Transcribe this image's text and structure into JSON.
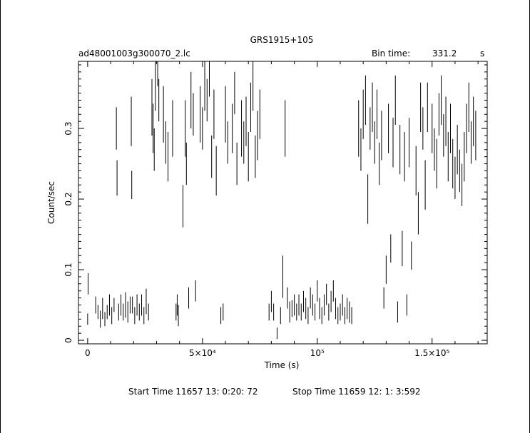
{
  "header": {
    "title": "GRS1915+105",
    "file_label": "ad48001003g300070_2.lc",
    "bin_time_label": "Bin time:",
    "bin_time_value": "331.2",
    "bin_time_unit": "s"
  },
  "footer": {
    "start_time": "Start Time 11657 13: 0:20: 72",
    "stop_time": "Stop Time 11659 12: 1: 3:592"
  },
  "chart_data": {
    "type": "scatter",
    "title": "GRS1915+105",
    "xlabel": "Time (s)",
    "ylabel": "Count/sec",
    "xlim": [
      -4000,
      174000
    ],
    "ylim": [
      -0.005,
      0.395
    ],
    "x_ticks": [
      {
        "value": 0,
        "label": "0"
      },
      {
        "value": 50000,
        "label": "5×10⁴"
      },
      {
        "value": 100000,
        "label": "10⁵"
      },
      {
        "value": 150000,
        "label": "1.5×10⁵"
      }
    ],
    "y_ticks": [
      {
        "value": 0,
        "label": "0"
      },
      {
        "value": 0.1,
        "label": "0.1"
      },
      {
        "value": 0.2,
        "label": "0.2"
      },
      {
        "value": 0.3,
        "label": "0.3"
      }
    ],
    "grid": false,
    "points": [
      [
        0,
        0.03,
        0.008
      ],
      [
        200,
        0.08,
        0.015
      ],
      [
        3500,
        0.05,
        0.012
      ],
      [
        4500,
        0.04,
        0.01
      ],
      [
        5500,
        0.03,
        0.012
      ],
      [
        6500,
        0.045,
        0.015
      ],
      [
        7500,
        0.03,
        0.01
      ],
      [
        8500,
        0.04,
        0.01
      ],
      [
        9500,
        0.05,
        0.015
      ],
      [
        10500,
        0.035,
        0.012
      ],
      [
        11500,
        0.05,
        0.01
      ],
      [
        12500,
        0.3,
        0.03
      ],
      [
        12800,
        0.23,
        0.025
      ],
      [
        13500,
        0.04,
        0.012
      ],
      [
        14500,
        0.05,
        0.015
      ],
      [
        15500,
        0.04,
        0.012
      ],
      [
        16500,
        0.05,
        0.018
      ],
      [
        17500,
        0.04,
        0.015
      ],
      [
        18500,
        0.05,
        0.012
      ],
      [
        19000,
        0.31,
        0.035
      ],
      [
        19200,
        0.22,
        0.02
      ],
      [
        19500,
        0.05,
        0.012
      ],
      [
        20500,
        0.035,
        0.012
      ],
      [
        21500,
        0.05,
        0.015
      ],
      [
        22500,
        0.04,
        0.012
      ],
      [
        23500,
        0.05,
        0.015
      ],
      [
        24500,
        0.035,
        0.012
      ],
      [
        25500,
        0.055,
        0.018
      ],
      [
        26500,
        0.04,
        0.012
      ],
      [
        28000,
        0.33,
        0.04
      ],
      [
        28500,
        0.3,
        0.035
      ],
      [
        29000,
        0.27,
        0.03
      ],
      [
        29500,
        0.36,
        0.035
      ],
      [
        30500,
        0.4,
        0.04
      ],
      [
        31000,
        0.34,
        0.03
      ],
      [
        33000,
        0.32,
        0.04
      ],
      [
        34000,
        0.28,
        0.03
      ],
      [
        35000,
        0.26,
        0.035
      ],
      [
        37000,
        0.3,
        0.04
      ],
      [
        38500,
        0.04,
        0.012
      ],
      [
        39000,
        0.05,
        0.015
      ],
      [
        39500,
        0.035,
        0.015
      ],
      [
        41500,
        0.19,
        0.03
      ],
      [
        42500,
        0.3,
        0.04
      ],
      [
        43000,
        0.25,
        0.03
      ],
      [
        44000,
        0.06,
        0.015
      ],
      [
        45000,
        0.34,
        0.04
      ],
      [
        46000,
        0.32,
        0.03
      ],
      [
        47000,
        0.07,
        0.015
      ],
      [
        49000,
        0.32,
        0.04
      ],
      [
        50000,
        0.3,
        0.03
      ],
      [
        51000,
        0.36,
        0.035
      ],
      [
        52000,
        0.34,
        0.03
      ],
      [
        53000,
        0.38,
        0.035
      ],
      [
        54000,
        0.26,
        0.03
      ],
      [
        55000,
        0.32,
        0.035
      ],
      [
        56000,
        0.24,
        0.035
      ],
      [
        58000,
        0.035,
        0.012
      ],
      [
        59000,
        0.04,
        0.012
      ],
      [
        60000,
        0.32,
        0.04
      ],
      [
        61000,
        0.28,
        0.03
      ],
      [
        63000,
        0.3,
        0.035
      ],
      [
        64000,
        0.35,
        0.03
      ],
      [
        65000,
        0.25,
        0.03
      ],
      [
        67000,
        0.3,
        0.04
      ],
      [
        68000,
        0.28,
        0.03
      ],
      [
        69000,
        0.31,
        0.035
      ],
      [
        70000,
        0.26,
        0.035
      ],
      [
        71000,
        0.33,
        0.035
      ],
      [
        72000,
        0.36,
        0.035
      ],
      [
        73000,
        0.26,
        0.03
      ],
      [
        74000,
        0.29,
        0.035
      ],
      [
        75000,
        0.32,
        0.035
      ],
      [
        79000,
        0.04,
        0.012
      ],
      [
        80000,
        0.055,
        0.015
      ],
      [
        81000,
        0.04,
        0.012
      ],
      [
        82500,
        0.01,
        0.008
      ],
      [
        84000,
        0.035,
        0.012
      ],
      [
        85000,
        0.09,
        0.03
      ],
      [
        86000,
        0.3,
        0.04
      ],
      [
        87000,
        0.06,
        0.015
      ],
      [
        88000,
        0.04,
        0.015
      ],
      [
        89000,
        0.045,
        0.012
      ],
      [
        90000,
        0.05,
        0.015
      ],
      [
        91000,
        0.04,
        0.012
      ],
      [
        92000,
        0.05,
        0.015
      ],
      [
        93000,
        0.04,
        0.012
      ],
      [
        94000,
        0.055,
        0.015
      ],
      [
        95000,
        0.045,
        0.015
      ],
      [
        96000,
        0.035,
        0.012
      ],
      [
        97000,
        0.06,
        0.015
      ],
      [
        98000,
        0.05,
        0.015
      ],
      [
        99000,
        0.04,
        0.012
      ],
      [
        100000,
        0.07,
        0.015
      ],
      [
        101000,
        0.045,
        0.015
      ],
      [
        102000,
        0.035,
        0.012
      ],
      [
        103000,
        0.05,
        0.015
      ],
      [
        104000,
        0.065,
        0.015
      ],
      [
        105000,
        0.04,
        0.012
      ],
      [
        106000,
        0.055,
        0.015
      ],
      [
        107000,
        0.07,
        0.015
      ],
      [
        108000,
        0.045,
        0.015
      ],
      [
        109000,
        0.035,
        0.012
      ],
      [
        110000,
        0.04,
        0.012
      ],
      [
        111000,
        0.05,
        0.015
      ],
      [
        112000,
        0.035,
        0.012
      ],
      [
        113000,
        0.045,
        0.015
      ],
      [
        114000,
        0.04,
        0.015
      ],
      [
        115000,
        0.035,
        0.012
      ],
      [
        118000,
        0.3,
        0.04
      ],
      [
        119000,
        0.27,
        0.03
      ],
      [
        120000,
        0.32,
        0.035
      ],
      [
        121000,
        0.34,
        0.035
      ],
      [
        122000,
        0.2,
        0.035
      ],
      [
        123000,
        0.3,
        0.03
      ],
      [
        124000,
        0.33,
        0.035
      ],
      [
        125000,
        0.28,
        0.03
      ],
      [
        126000,
        0.32,
        0.035
      ],
      [
        127000,
        0.25,
        0.03
      ],
      [
        128000,
        0.29,
        0.035
      ],
      [
        129000,
        0.06,
        0.015
      ],
      [
        130000,
        0.1,
        0.02
      ],
      [
        131000,
        0.3,
        0.035
      ],
      [
        132000,
        0.13,
        0.02
      ],
      [
        133000,
        0.28,
        0.035
      ],
      [
        134000,
        0.34,
        0.035
      ],
      [
        135000,
        0.04,
        0.015
      ],
      [
        136000,
        0.27,
        0.035
      ],
      [
        137000,
        0.13,
        0.025
      ],
      [
        138000,
        0.26,
        0.035
      ],
      [
        139000,
        0.05,
        0.015
      ],
      [
        140000,
        0.28,
        0.035
      ],
      [
        141000,
        0.12,
        0.02
      ],
      [
        143000,
        0.24,
        0.035
      ],
      [
        144000,
        0.18,
        0.03
      ],
      [
        145000,
        0.33,
        0.035
      ],
      [
        146000,
        0.3,
        0.03
      ],
      [
        147000,
        0.22,
        0.035
      ],
      [
        148000,
        0.33,
        0.035
      ],
      [
        150000,
        0.3,
        0.035
      ],
      [
        151000,
        0.27,
        0.03
      ],
      [
        152000,
        0.25,
        0.035
      ],
      [
        153000,
        0.32,
        0.03
      ],
      [
        154000,
        0.34,
        0.035
      ],
      [
        155000,
        0.29,
        0.03
      ],
      [
        156000,
        0.31,
        0.035
      ],
      [
        157000,
        0.26,
        0.035
      ],
      [
        158000,
        0.3,
        0.035
      ],
      [
        159000,
        0.25,
        0.035
      ],
      [
        160000,
        0.23,
        0.03
      ],
      [
        161000,
        0.27,
        0.035
      ],
      [
        162000,
        0.24,
        0.03
      ],
      [
        163000,
        0.22,
        0.03
      ],
      [
        164000,
        0.26,
        0.035
      ],
      [
        165000,
        0.3,
        0.035
      ],
      [
        166000,
        0.33,
        0.035
      ],
      [
        167000,
        0.28,
        0.03
      ],
      [
        168000,
        0.31,
        0.035
      ],
      [
        169000,
        0.29,
        0.035
      ]
    ]
  }
}
